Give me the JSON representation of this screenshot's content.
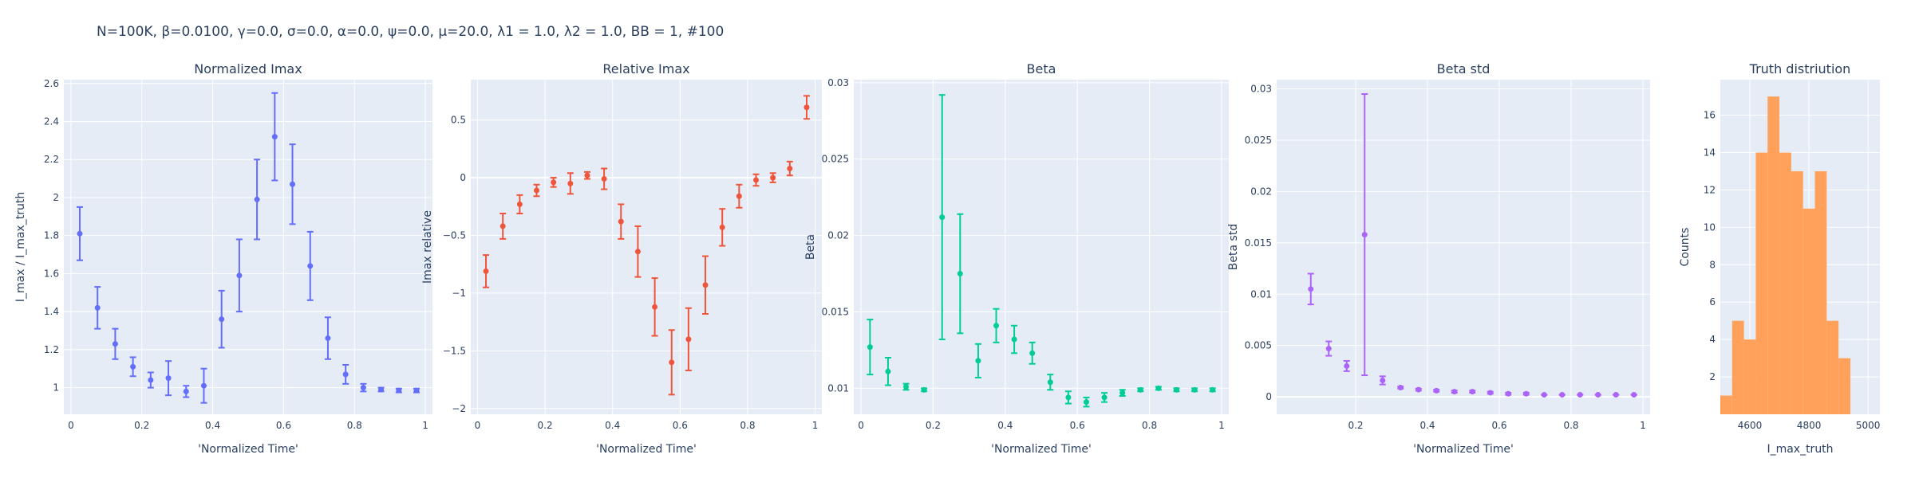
{
  "figure": {
    "title": "N=100K, β=0.0100, γ=0.0, σ=0.0,  α=0.0, ψ=0.0, μ=20.0, λ1 = 1.0, λ2 = 1.0, BB = 1, #100"
  },
  "colors": {
    "plot_bg": "#e5ecf6",
    "grid": "#ffffff",
    "text": "#2a3f5f",
    "imax": "#636efa",
    "relative": "#ef553b",
    "beta": "#00cc96",
    "beta_std": "#ab63fa",
    "hist": "#ffa15a"
  },
  "chart_data": [
    {
      "type": "scatter",
      "title": "Normalized Imax",
      "xlabel": "'Normalized Time'",
      "ylabel": "I_max / I_max_truth",
      "xlim": [
        -0.02,
        1.02
      ],
      "ylim": [
        0.86,
        2.62
      ],
      "xticks": [
        0,
        0.2,
        0.4,
        0.6,
        0.8,
        1
      ],
      "xtick_labels": [
        "0",
        "0.2",
        "0.4",
        "0.6",
        "0.8",
        "1"
      ],
      "yticks": [
        1,
        1.2,
        1.4,
        1.6,
        1.8,
        2,
        2.2,
        2.4,
        2.6
      ],
      "ytick_labels": [
        "1",
        "1.2",
        "1.4",
        "1.6",
        "1.8",
        "2",
        "2.2",
        "2.4",
        "2.6"
      ],
      "grid": true,
      "series": [
        {
          "x": [
            0.025,
            0.075,
            0.125,
            0.175,
            0.225,
            0.275,
            0.325,
            0.375,
            0.425,
            0.475,
            0.525,
            0.575,
            0.625,
            0.675,
            0.725,
            0.775,
            0.825,
            0.875,
            0.925,
            0.975
          ],
          "y": [
            1.81,
            1.42,
            1.23,
            1.11,
            1.04,
            1.05,
            0.98,
            1.01,
            1.36,
            1.59,
            1.99,
            2.32,
            2.07,
            1.64,
            1.26,
            1.07,
            1.0,
            0.99,
            0.985,
            0.985
          ],
          "err_minus": [
            0.14,
            0.11,
            0.08,
            0.05,
            0.04,
            0.09,
            0.03,
            0.09,
            0.15,
            0.19,
            0.21,
            0.23,
            0.21,
            0.18,
            0.11,
            0.05,
            0.02,
            0.01,
            0.01,
            0.01
          ],
          "err_plus": [
            0.14,
            0.11,
            0.08,
            0.05,
            0.04,
            0.09,
            0.03,
            0.09,
            0.15,
            0.19,
            0.21,
            0.23,
            0.21,
            0.18,
            0.11,
            0.05,
            0.02,
            0.01,
            0.01,
            0.01
          ],
          "color": "#636efa"
        }
      ]
    },
    {
      "type": "scatter",
      "title": "Relative Imax",
      "xlabel": "'Normalized Time'",
      "ylabel": "Imax relative",
      "xlim": [
        -0.02,
        1.02
      ],
      "ylim": [
        -2.05,
        0.85
      ],
      "xticks": [
        0,
        0.2,
        0.4,
        0.6,
        0.8,
        1
      ],
      "xtick_labels": [
        "0",
        "0.2",
        "0.4",
        "0.6",
        "0.8",
        "1"
      ],
      "yticks": [
        -2,
        -1.5,
        -1,
        -0.5,
        0,
        0.5
      ],
      "ytick_labels": [
        "−2",
        "−1.5",
        "−1",
        "−0.5",
        "0",
        "0.5"
      ],
      "grid": true,
      "zeroline": true,
      "series": [
        {
          "x": [
            0.025,
            0.075,
            0.125,
            0.175,
            0.225,
            0.275,
            0.325,
            0.375,
            0.425,
            0.475,
            0.525,
            0.575,
            0.625,
            0.675,
            0.725,
            0.775,
            0.825,
            0.875,
            0.925,
            0.975
          ],
          "y": [
            -0.81,
            -0.42,
            -0.23,
            -0.11,
            -0.04,
            -0.05,
            0.02,
            -0.01,
            -0.38,
            -0.64,
            -1.12,
            -1.6,
            -1.4,
            -0.93,
            -0.43,
            -0.16,
            -0.02,
            0.0,
            0.08,
            0.61
          ],
          "err_minus": [
            0.14,
            0.11,
            0.08,
            0.05,
            0.04,
            0.09,
            0.03,
            0.09,
            0.15,
            0.22,
            0.25,
            0.28,
            0.27,
            0.25,
            0.16,
            0.1,
            0.05,
            0.04,
            0.06,
            0.1
          ],
          "err_plus": [
            0.14,
            0.11,
            0.08,
            0.05,
            0.04,
            0.09,
            0.03,
            0.09,
            0.15,
            0.22,
            0.25,
            0.28,
            0.27,
            0.25,
            0.16,
            0.1,
            0.05,
            0.04,
            0.06,
            0.1
          ],
          "color": "#ef553b"
        }
      ]
    },
    {
      "type": "scatter",
      "title": "Beta",
      "xlabel": "'Normalized Time'",
      "ylabel": "Beta",
      "xlim": [
        -0.02,
        1.02
      ],
      "ylim": [
        0.0083,
        0.0302
      ],
      "xticks": [
        0,
        0.2,
        0.4,
        0.6,
        0.8,
        1
      ],
      "xtick_labels": [
        "0",
        "0.2",
        "0.4",
        "0.6",
        "0.8",
        "1"
      ],
      "yticks": [
        0.01,
        0.015,
        0.02,
        0.025,
        0.03
      ],
      "ytick_labels": [
        "0.01",
        "0.015",
        "0.02",
        "0.025",
        "0.03"
      ],
      "grid": true,
      "series": [
        {
          "x": [
            0.025,
            0.075,
            0.125,
            0.175,
            0.225,
            0.275,
            0.325,
            0.375,
            0.425,
            0.475,
            0.525,
            0.575,
            0.625,
            0.675,
            0.725,
            0.775,
            0.825,
            0.875,
            0.925,
            0.975
          ],
          "y": [
            0.0127,
            0.0111,
            0.0101,
            0.0099,
            0.0212,
            0.0175,
            0.0118,
            0.0141,
            0.0132,
            0.0123,
            0.0104,
            0.0094,
            0.0091,
            0.0094,
            0.0097,
            0.0099,
            0.01,
            0.0099,
            0.0099,
            0.0099
          ],
          "err_minus": [
            0.0018,
            0.0009,
            0.0002,
            0.0001,
            0.008,
            0.0039,
            0.0011,
            0.0011,
            0.0009,
            0.0007,
            0.0005,
            0.0004,
            0.0003,
            0.0003,
            0.0002,
            0.0001,
            0.0001,
            0.0001,
            0.0001,
            0.0001
          ],
          "err_plus": [
            0.0018,
            0.0009,
            0.0002,
            0.0001,
            0.008,
            0.0039,
            0.0011,
            0.0011,
            0.0009,
            0.0007,
            0.0005,
            0.0004,
            0.0003,
            0.0003,
            0.0002,
            0.0001,
            0.0001,
            0.0001,
            0.0001,
            0.0001
          ],
          "color": "#00cc96"
        }
      ]
    },
    {
      "type": "scatter",
      "title": "Beta std",
      "xlabel": "'Normalized Time'",
      "ylabel": "Beta std",
      "xlim": [
        -0.02,
        1.02
      ],
      "ylim": [
        -0.0017,
        0.0309
      ],
      "xticks": [
        0.2,
        0.4,
        0.6,
        0.8,
        1
      ],
      "xtick_labels": [
        "0.2",
        "0.4",
        "0.6",
        "0.8",
        "1"
      ],
      "yticks": [
        0,
        0.005,
        0.01,
        0.015,
        0.02,
        0.025,
        0.03
      ],
      "ytick_labels": [
        "0",
        "0.005",
        "0.01",
        "0.015",
        "0.02",
        "0.025",
        "0.03"
      ],
      "grid": true,
      "zeroline": true,
      "series": [
        {
          "x": [
            0.075,
            0.125,
            0.175,
            0.225,
            0.275,
            0.325,
            0.375,
            0.425,
            0.475,
            0.525,
            0.575,
            0.625,
            0.675,
            0.725,
            0.775,
            0.825,
            0.875,
            0.925,
            0.975
          ],
          "y": [
            0.0105,
            0.0047,
            0.003,
            0.0158,
            0.0016,
            0.0009,
            0.0007,
            0.0006,
            0.0005,
            0.0005,
            0.0004,
            0.0003,
            0.0003,
            0.0002,
            0.0002,
            0.0002,
            0.0002,
            0.0002,
            0.0002
          ],
          "err_minus": [
            0.0015,
            0.0007,
            0.0005,
            0.0137,
            0.0004,
            0.0001,
            0.0001,
            0.0001,
            0.0001,
            0.0001,
            0.0001,
            0.0001,
            0.0001,
            0.0,
            0.0,
            0.0,
            0.0,
            0.0,
            0.0
          ],
          "err_plus": [
            0.0015,
            0.0007,
            0.0005,
            0.0137,
            0.0004,
            0.0001,
            0.0001,
            0.0001,
            0.0001,
            0.0001,
            0.0001,
            0.0001,
            0.0001,
            0.0,
            0.0,
            0.0,
            0.0,
            0.0,
            0.0
          ],
          "color": "#ab63fa"
        }
      ]
    },
    {
      "type": "bar",
      "subtype": "histogram",
      "title": "Truth distriution",
      "xlabel": "I_max_truth",
      "ylabel": "Counts",
      "xlim": [
        4500,
        5040
      ],
      "ylim": [
        0,
        17.9
      ],
      "xticks": [
        4600,
        4800,
        5000
      ],
      "xtick_labels": [
        "4600",
        "4800",
        "5000"
      ],
      "yticks": [
        2,
        4,
        6,
        8,
        10,
        12,
        14,
        16
      ],
      "ytick_labels": [
        "2",
        "4",
        "6",
        "8",
        "10",
        "12",
        "14",
        "16"
      ],
      "grid": true,
      "bin_edges": [
        4500,
        4540,
        4580,
        4620,
        4660,
        4700,
        4740,
        4780,
        4820,
        4860,
        4900,
        4940,
        4980,
        5020
      ],
      "values": [
        1,
        5,
        4,
        14,
        17,
        14,
        13,
        11,
        13,
        5,
        3,
        0,
        0
      ],
      "color": "#ffa15a"
    }
  ]
}
